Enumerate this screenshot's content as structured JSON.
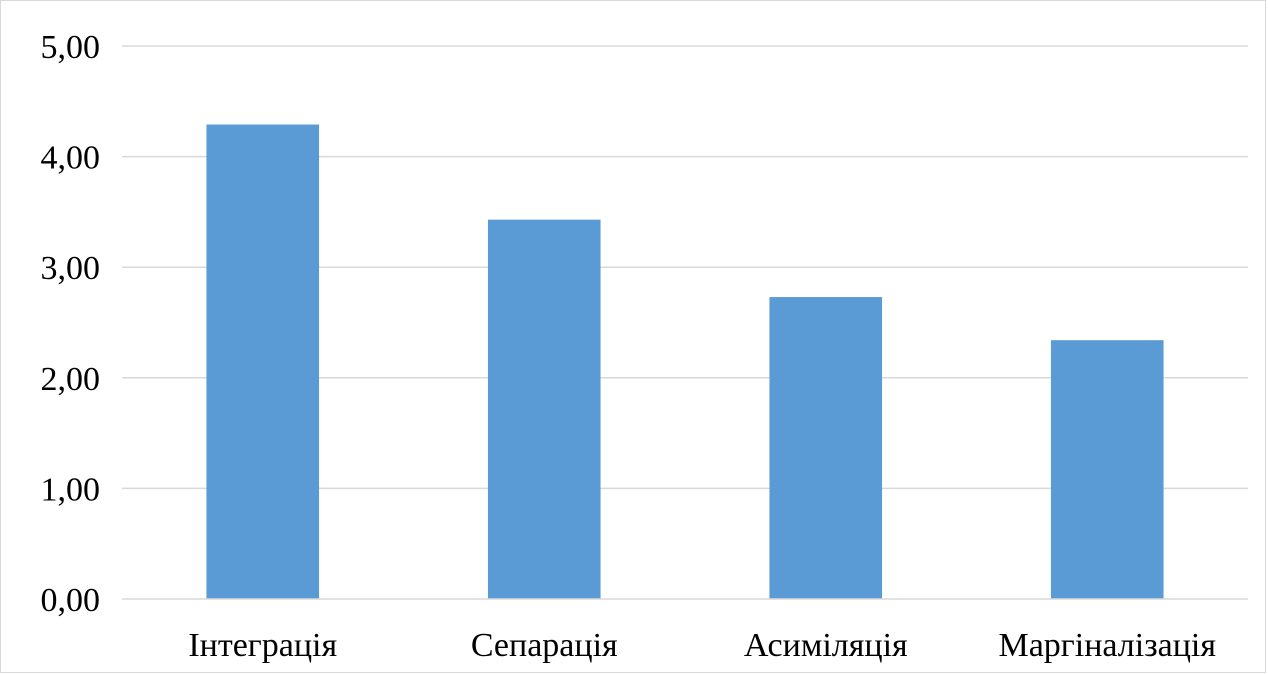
{
  "chart_data": {
    "type": "bar",
    "title": "",
    "xlabel": "",
    "ylabel": "",
    "categories": [
      "Інтеграція",
      "Сепарація",
      "Асиміляція",
      "Маргіналізація"
    ],
    "values": [
      4.29,
      3.43,
      2.73,
      2.34
    ],
    "ylim": [
      0,
      5
    ],
    "yticks": [
      0,
      1,
      2,
      3,
      4,
      5
    ],
    "ytick_labels": [
      "0,00",
      "1,00",
      "2,00",
      "3,00",
      "4,00",
      "5,00"
    ],
    "grid": true,
    "legend": "none",
    "colors": {
      "bar": "#5b9bd5",
      "grid": "#d9d9d9",
      "axis": "#d9d9d9",
      "text": "#000000"
    }
  }
}
